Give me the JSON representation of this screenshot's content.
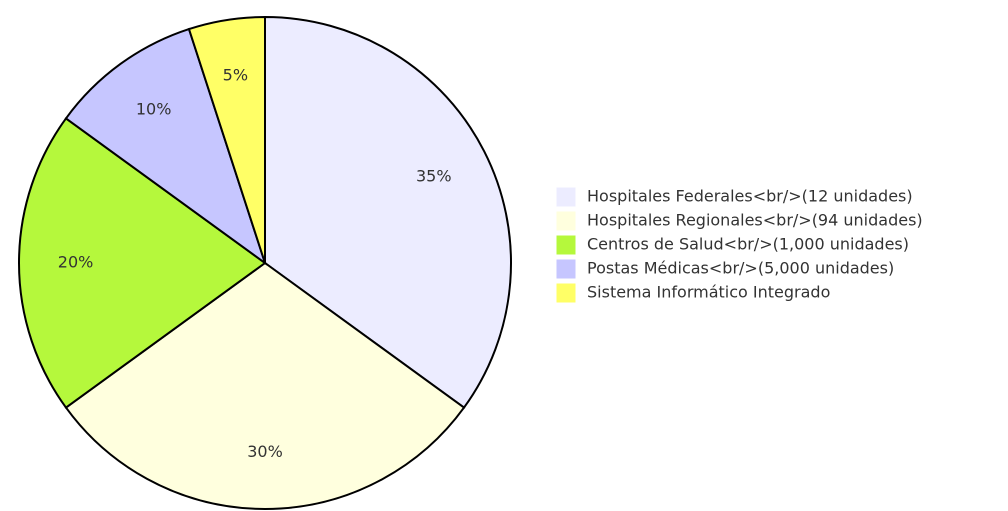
{
  "chart_data": {
    "type": "pie",
    "categories": [
      "Hospitales Federales<br/>(12 unidades)",
      "Hospitales Regionales<br/>(94 unidades)",
      "Centros de Salud<br/>(1,000 unidades)",
      "Postas Médicas<br/>(5,000 unidades)",
      "Sistema Informático Integrado"
    ],
    "values": [
      35,
      30,
      20,
      10,
      5
    ],
    "value_labels": [
      "35%",
      "30%",
      "20%",
      "10%",
      "5%"
    ],
    "colors": [
      "#ececff",
      "#ffffde",
      "#b5f83c",
      "#c6c6ff",
      "#ffff66"
    ],
    "legend": "right"
  }
}
